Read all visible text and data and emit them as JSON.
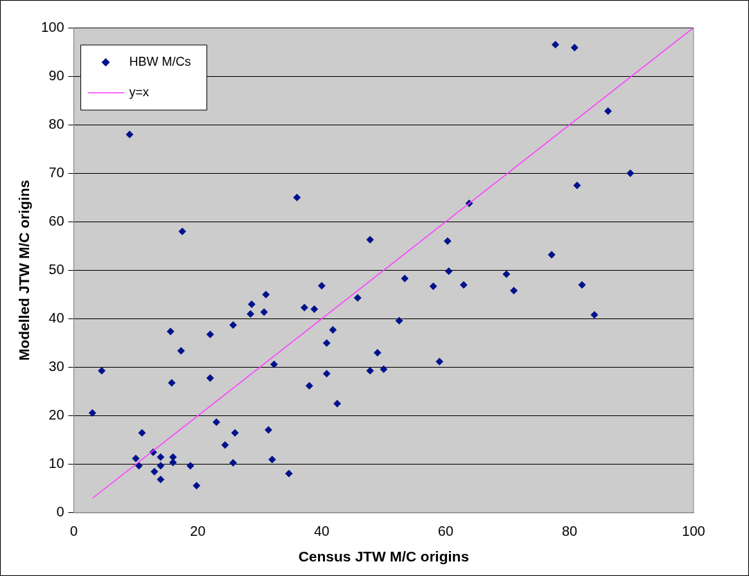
{
  "chart_data": {
    "type": "scatter",
    "xlabel": "Census JTW M/C origins",
    "ylabel": "Modelled JTW M/C origins",
    "xlim": [
      0,
      100
    ],
    "ylim": [
      0,
      100
    ],
    "xticks": [
      0,
      20,
      40,
      60,
      80,
      100
    ],
    "yticks": [
      0,
      10,
      20,
      30,
      40,
      50,
      60,
      70,
      80,
      90,
      100
    ],
    "grid": "y",
    "legend": "top left",
    "series": [
      {
        "name": "HBW M/Cs",
        "marker": "diamond",
        "color": "#00128c",
        "x": [
          3,
          4.5,
          9,
          10,
          10.5,
          11,
          12.8,
          13,
          14,
          14,
          14,
          15.6,
          15.8,
          16,
          16,
          17.3,
          17.5,
          18.8,
          19.8,
          22,
          22,
          23,
          24.4,
          25.7,
          25.7,
          26,
          28.5,
          28.7,
          30.7,
          31,
          31.4,
          32,
          32.3,
          34.7,
          36,
          37.2,
          38,
          38.8,
          40,
          40.8,
          40.8,
          41.8,
          42.5,
          45.8,
          47.8,
          47.8,
          49,
          50,
          52.5,
          53.4,
          58,
          59,
          60.3,
          60.5,
          62.9,
          63.8,
          69.8,
          71,
          77.1,
          77.7,
          80.8,
          81.2,
          82,
          84,
          86.2,
          89.8
        ],
        "values": [
          20.6,
          29.3,
          78,
          11.2,
          9.7,
          16.5,
          12.5,
          8.5,
          9.7,
          11.5,
          6.9,
          37.4,
          26.8,
          10.4,
          11.5,
          33.4,
          58,
          9.7,
          5.6,
          36.8,
          27.8,
          18.7,
          14,
          38.7,
          10.3,
          16.5,
          41,
          43,
          41.4,
          45,
          17.1,
          11,
          30.6,
          8.1,
          65,
          42.3,
          26.2,
          42,
          46.8,
          35,
          28.7,
          37.7,
          22.5,
          44.3,
          29.3,
          56.3,
          33,
          29.6,
          39.6,
          48.3,
          46.7,
          31.2,
          56,
          49.8,
          47,
          63.8,
          49.2,
          45.8,
          53.2,
          96.5,
          95.9,
          67.5,
          47,
          40.8,
          82.8,
          70
        ]
      },
      {
        "name": "y=x",
        "type": "line",
        "marker": "none",
        "color": "#ff40ff",
        "x": [
          3,
          100
        ],
        "values": [
          3,
          100
        ]
      }
    ]
  }
}
